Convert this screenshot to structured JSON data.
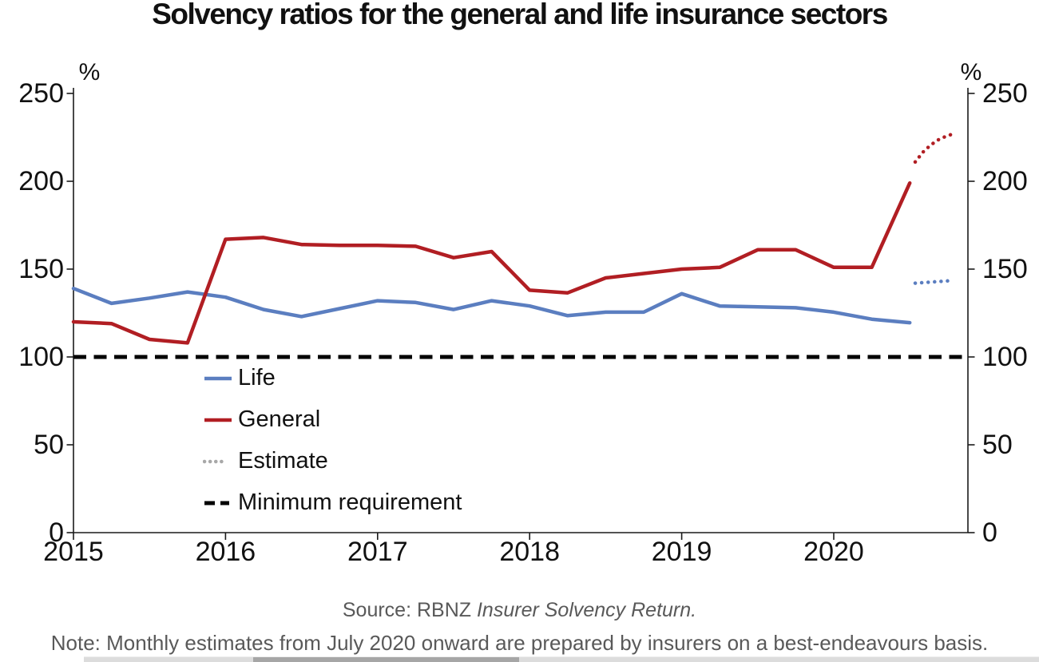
{
  "title": "Solvency ratios for the general and life insurance sectors",
  "axes": {
    "left_unit": "%",
    "right_unit": "%",
    "y_ticks": [
      0,
      50,
      100,
      150,
      200,
      250
    ],
    "x_ticks": [
      "2015",
      "2016",
      "2017",
      "2018",
      "2019",
      "2020"
    ]
  },
  "colors": {
    "life": "#5B7EC0",
    "general": "#B11E23",
    "estimate_legend": "#A8A8A8",
    "minimum_requirement": "#000000",
    "axis": "#1a1a1a",
    "footer_text": "#595959"
  },
  "legend": [
    {
      "label": "Life",
      "style": "solid",
      "color": "#5B7EC0"
    },
    {
      "label": "General",
      "style": "solid",
      "color": "#B11E23"
    },
    {
      "label": "Estimate",
      "style": "dotted",
      "color": "#A8A8A8"
    },
    {
      "label": "Minimum requirement",
      "style": "dashed",
      "color": "#000000"
    }
  ],
  "chart_data": {
    "type": "line",
    "title": "Solvency ratios for the general and life insurance sectors",
    "ylabel": "%",
    "ylim": [
      0,
      250
    ],
    "y_tick_interval": 50,
    "grid": false,
    "legend_position": "inside-lower-left",
    "categories": [
      "Dec 2014",
      "Mar 2015",
      "Jun 2015",
      "Sep 2015",
      "Dec 2015",
      "Mar 2016",
      "Jun 2016",
      "Sep 2016",
      "Dec 2016",
      "Mar 2017",
      "Jun 2017",
      "Sep 2017",
      "Dec 2017",
      "Mar 2018",
      "Jun 2018",
      "Sep 2018",
      "Dec 2018",
      "Mar 2019",
      "Jun 2019",
      "Sep 2019",
      "Dec 2019",
      "Mar 2020",
      "Jun 2020"
    ],
    "series": [
      {
        "name": "Life",
        "style": "solid",
        "values": [
          139,
          130.5,
          133.5,
          137,
          134,
          127,
          123,
          127.5,
          132,
          131,
          127,
          132,
          129,
          123.5,
          125.5,
          125.5,
          136,
          129,
          128.5,
          128,
          125.5,
          121.5,
          119.5
        ]
      },
      {
        "name": "General",
        "style": "solid",
        "values": [
          120,
          119,
          110,
          108,
          167,
          168,
          164,
          163.5,
          163.5,
          163,
          156.5,
          160,
          138,
          136.5,
          145,
          147.5,
          150,
          151,
          161,
          161,
          151,
          151,
          199
        ]
      }
    ],
    "estimates": {
      "months": [
        "Jul 2020",
        "Aug 2020",
        "Sep 2020",
        "Oct 2020",
        "Nov 2020",
        "Dec 2020"
      ],
      "life_estimate": [
        142,
        142.3,
        142.6,
        142.9,
        143.2,
        143.5
      ],
      "general_estimate": [
        211,
        216.5,
        220.5,
        223.5,
        225.5,
        227
      ]
    },
    "minimum_requirement": 100
  },
  "footer": {
    "source_prefix": "Source: RBNZ ",
    "source_italic": "Insurer Solvency Return.",
    "note": "Note: Monthly estimates from July 2020 onward are prepared by insurers on a best-endeavours basis."
  }
}
